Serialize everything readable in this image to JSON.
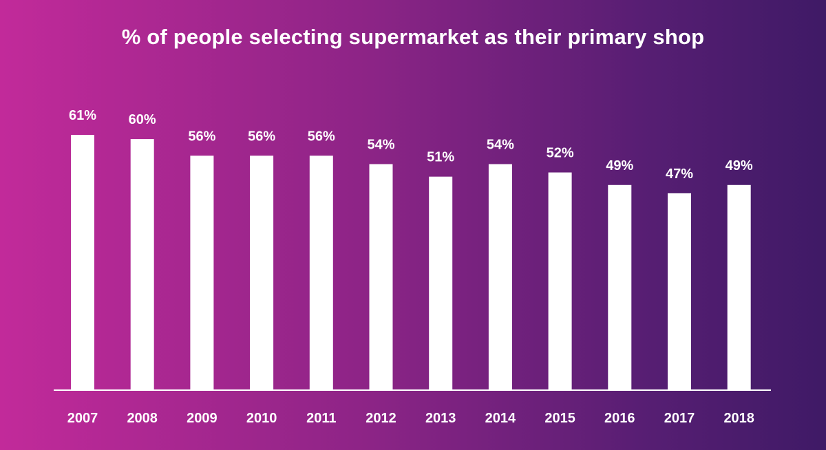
{
  "chart_data": {
    "type": "bar",
    "title": "% of people selecting supermarket as their primary shop",
    "xlabel": "",
    "ylabel": "",
    "categories": [
      "2007",
      "2008",
      "2009",
      "2010",
      "2011",
      "2012",
      "2013",
      "2014",
      "2015",
      "2016",
      "2017",
      "2018"
    ],
    "values": [
      61,
      60,
      56,
      56,
      56,
      54,
      51,
      54,
      52,
      49,
      47,
      49
    ],
    "value_labels": [
      "61%",
      "60%",
      "56%",
      "56%",
      "56%",
      "54%",
      "51%",
      "54%",
      "52%",
      "49%",
      "47%",
      "49%"
    ],
    "ylim": [
      0,
      61
    ],
    "grid": false,
    "legend": "none"
  },
  "colors": {
    "bar": "#ffffff",
    "text": "#ffffff",
    "background_left": "#c22a9a",
    "background_right": "#3f1a66"
  }
}
